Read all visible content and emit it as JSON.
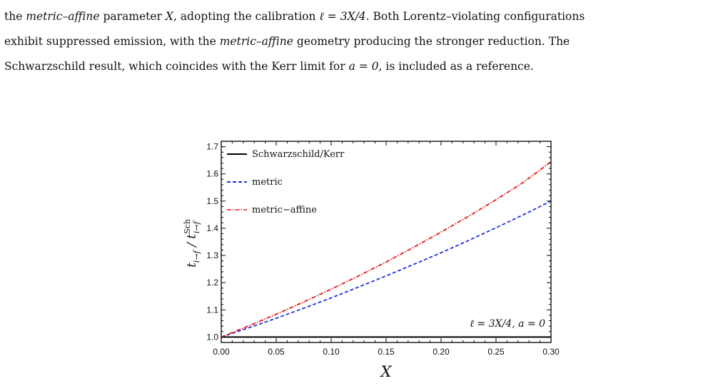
{
  "caption": {
    "line1_pre": "the ",
    "line1_em1": "metric–affine",
    "line1_mid": " parameter ",
    "line1_var": "X",
    "line1_mid2": ", adopting the calibration ",
    "line1_math": "ℓ = 3X/4",
    "line1_post": ". Both Lorentz–violating configurations",
    "line2_pre": "exhibit suppressed emission, with the ",
    "line2_em": "metric–affine",
    "line2_post": " geometry producing the stronger reduction. The",
    "line3_pre": "Schwarzschild result, which coincides with the Kerr limit for ",
    "line3_math": "a = 0",
    "line3_post": ", is included as a reference."
  },
  "chart_data": {
    "type": "line",
    "xlabel": "X",
    "ylabel": "t_{i→f} / t^{Sch}_{i→f}",
    "xlim": [
      0.0,
      0.3
    ],
    "ylim": [
      0.98,
      1.72
    ],
    "xticks": [
      "0.00",
      "0.05",
      "0.10",
      "0.15",
      "0.20",
      "0.25",
      "0.30"
    ],
    "yticks": [
      "1.0",
      "1.1",
      "1.2",
      "1.3",
      "1.4",
      "1.5",
      "1.6",
      "1.7"
    ],
    "x": [
      0.0,
      0.025,
      0.05,
      0.075,
      0.1,
      0.125,
      0.15,
      0.175,
      0.2,
      0.225,
      0.25,
      0.275,
      0.3
    ],
    "series": [
      {
        "name": "Schwarzschild/Kerr",
        "color": "#000000",
        "dash": "solid",
        "values": [
          1.0,
          1.0,
          1.0,
          1.0,
          1.0,
          1.0,
          1.0,
          1.0,
          1.0,
          1.0,
          1.0,
          1.0,
          1.0
        ]
      },
      {
        "name": "metric",
        "color": "#1f2fe0",
        "dash": "dashed",
        "values": [
          1.0,
          1.034,
          1.069,
          1.106,
          1.144,
          1.184,
          1.225,
          1.267,
          1.31,
          1.355,
          1.402,
          1.45,
          1.5
        ]
      },
      {
        "name": "metric−affine",
        "color": "#e81818",
        "dash": "dashdot",
        "values": [
          1.0,
          1.041,
          1.084,
          1.129,
          1.176,
          1.225,
          1.276,
          1.33,
          1.386,
          1.444,
          1.505,
          1.569,
          1.645
        ]
      }
    ],
    "annotation": "ℓ = 3X/4,  a = 0",
    "legend_position": "top-left",
    "grid": false
  }
}
